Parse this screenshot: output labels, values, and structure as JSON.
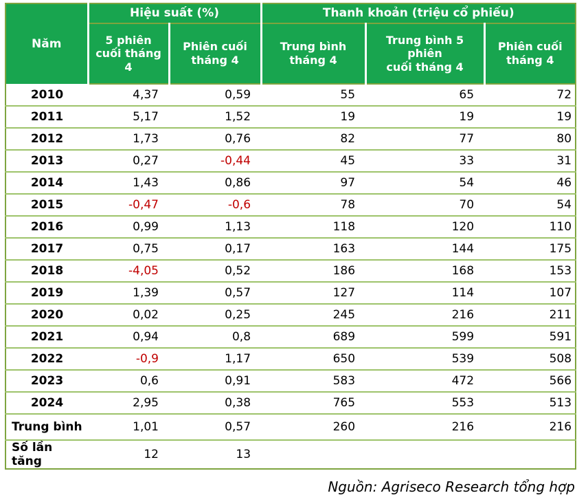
{
  "table": {
    "header": {
      "year_col": "Năm",
      "groups": [
        {
          "label": "Hiệu suất (%)",
          "subs": [
            "5 phiên\ncuối tháng\n4",
            "Phiên cuối\ntháng 4"
          ]
        },
        {
          "label": "Thanh khoản (triệu cổ phiếu)",
          "subs": [
            "Trung bình\ntháng 4",
            "Trung bình 5\nphiên\ncuối tháng 4",
            "Phiên cuối\ntháng 4"
          ]
        }
      ]
    },
    "rows": [
      {
        "label": "2010",
        "values": [
          "4,37",
          "0,59",
          "55",
          "65",
          "72"
        ]
      },
      {
        "label": "2011",
        "values": [
          "5,17",
          "1,52",
          "19",
          "19",
          "19"
        ]
      },
      {
        "label": "2012",
        "values": [
          "1,73",
          "0,76",
          "82",
          "77",
          "80"
        ]
      },
      {
        "label": "2013",
        "values": [
          "0,27",
          "-0,44",
          "45",
          "33",
          "31"
        ]
      },
      {
        "label": "2014",
        "values": [
          "1,43",
          "0,86",
          "97",
          "54",
          "46"
        ]
      },
      {
        "label": "2015",
        "values": [
          "-0,47",
          "-0,6",
          "78",
          "70",
          "54"
        ]
      },
      {
        "label": "2016",
        "values": [
          "0,99",
          "1,13",
          "118",
          "120",
          "110"
        ]
      },
      {
        "label": "2017",
        "values": [
          "0,75",
          "0,17",
          "163",
          "144",
          "175"
        ]
      },
      {
        "label": "2018",
        "values": [
          "-4,05",
          "0,52",
          "186",
          "168",
          "153"
        ]
      },
      {
        "label": "2019",
        "values": [
          "1,39",
          "0,57",
          "127",
          "114",
          "107"
        ]
      },
      {
        "label": "2020",
        "values": [
          "0,02",
          "0,25",
          "245",
          "216",
          "211"
        ]
      },
      {
        "label": "2021",
        "values": [
          "0,94",
          "0,8",
          "689",
          "599",
          "591"
        ]
      },
      {
        "label": "2022",
        "values": [
          "-0,9",
          "1,17",
          "650",
          "539",
          "508"
        ]
      },
      {
        "label": "2023",
        "values": [
          "0,6",
          "0,91",
          "583",
          "472",
          "566"
        ]
      },
      {
        "label": "2024",
        "values": [
          "2,95",
          "0,38",
          "765",
          "553",
          "513"
        ]
      }
    ],
    "summary_rows": [
      {
        "label": "Trung bình",
        "values": [
          "1,01",
          "0,57",
          "260",
          "216",
          "216"
        ]
      },
      {
        "label": "Số lần tăng",
        "values": [
          "12",
          "13",
          "",
          "",
          ""
        ]
      }
    ]
  },
  "footer": {
    "source": "Nguồn: Agriseco Research tổng hợp"
  },
  "colors": {
    "header_green": "#18a54f",
    "outer_border_olive": "#7ea43f",
    "row_line_olive": "#9dc36a",
    "negative_red": "#c00000",
    "header_text": "#ffffff",
    "body_text": "#000000"
  },
  "chart_data": {
    "type": "table",
    "title": "",
    "column_groups": [
      {
        "label": "Hiệu suất (%)",
        "span": 2
      },
      {
        "label": "Thanh khoản (triệu cổ phiếu)",
        "span": 3
      }
    ],
    "columns": [
      "Năm",
      "Hiệu suất (%) – 5 phiên cuối tháng 4",
      "Hiệu suất (%) – Phiên cuối tháng 4",
      "Thanh khoản (triệu cổ phiếu) – Trung bình tháng 4",
      "Thanh khoản (triệu cổ phiếu) – Trung bình 5 phiên cuối tháng 4",
      "Thanh khoản (triệu cổ phiếu) – Phiên cuối tháng 4"
    ],
    "rows": [
      [
        "2010",
        4.37,
        0.59,
        55,
        65,
        72
      ],
      [
        "2011",
        5.17,
        1.52,
        19,
        19,
        19
      ],
      [
        "2012",
        1.73,
        0.76,
        82,
        77,
        80
      ],
      [
        "2013",
        0.27,
        -0.44,
        45,
        33,
        31
      ],
      [
        "2014",
        1.43,
        0.86,
        97,
        54,
        46
      ],
      [
        "2015",
        -0.47,
        -0.6,
        78,
        70,
        54
      ],
      [
        "2016",
        0.99,
        1.13,
        118,
        120,
        110
      ],
      [
        "2017",
        0.75,
        0.17,
        163,
        144,
        175
      ],
      [
        "2018",
        -4.05,
        0.52,
        186,
        168,
        153
      ],
      [
        "2019",
        1.39,
        0.57,
        127,
        114,
        107
      ],
      [
        "2020",
        0.02,
        0.25,
        245,
        216,
        211
      ],
      [
        "2021",
        0.94,
        0.8,
        689,
        599,
        591
      ],
      [
        "2022",
        -0.9,
        1.17,
        650,
        539,
        508
      ],
      [
        "2023",
        0.6,
        0.91,
        583,
        472,
        566
      ],
      [
        "2024",
        2.95,
        0.38,
        765,
        553,
        513
      ],
      [
        "Trung bình",
        1.01,
        0.57,
        260,
        216,
        216
      ],
      [
        "Số lần tăng",
        12,
        13,
        null,
        null,
        null
      ]
    ],
    "annotations": [
      "Nguồn: Agriseco Research tổng hợp"
    ],
    "notes": "Negative performance values rendered in red; decimal comma formatting as displayed."
  }
}
